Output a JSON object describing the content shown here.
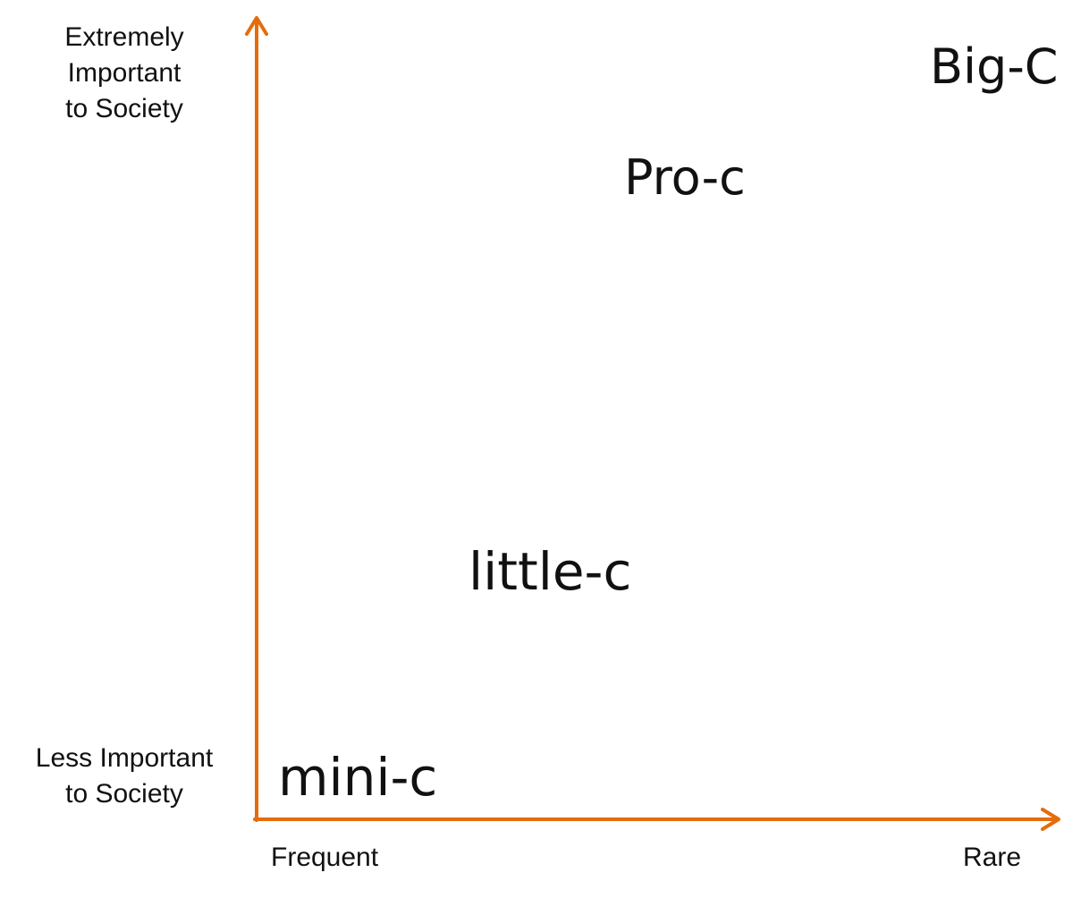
{
  "axes": {
    "y_top": "Extremely\nImportant\nto Society",
    "y_bottom": "Less Important\nto Society",
    "x_left": "Frequent",
    "x_right": "Rare",
    "color": "#E46C0A"
  },
  "levels": [
    {
      "label": "Big-C"
    },
    {
      "label": "Pro-c"
    },
    {
      "label": "little-c"
    },
    {
      "label": "mini-c"
    }
  ]
}
